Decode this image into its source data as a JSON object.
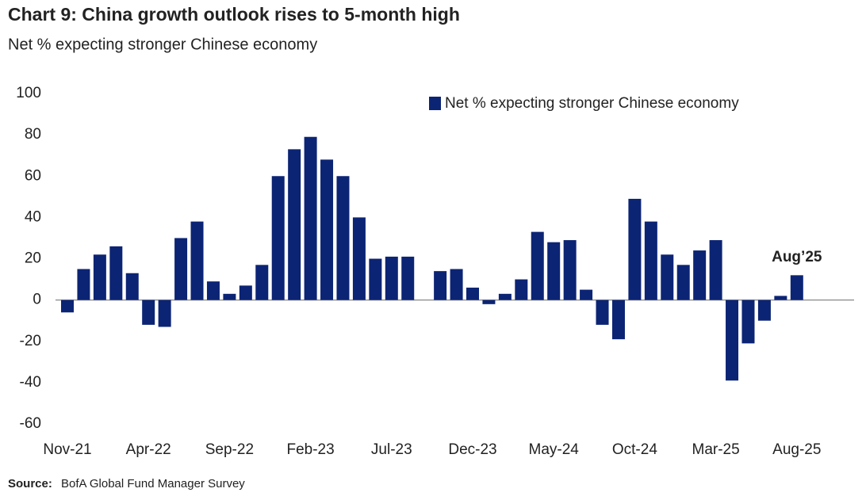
{
  "chart_data": {
    "type": "bar",
    "title": "Chart 9: China growth outlook rises to 5-month high",
    "subtitle": "Net % expecting stronger Chinese economy",
    "categories": [
      "Nov-21",
      null,
      null,
      null,
      null,
      "Apr-22",
      null,
      null,
      null,
      null,
      "Sep-22",
      null,
      null,
      null,
      null,
      "Feb-23",
      null,
      null,
      null,
      null,
      "Jul-23",
      null,
      null,
      null,
      null,
      "Dec-23",
      null,
      null,
      null,
      null,
      "May-24",
      null,
      null,
      null,
      null,
      "Oct-24",
      null,
      null,
      null,
      null,
      "Mar-25",
      null,
      null,
      null,
      null,
      "Aug-25"
    ],
    "series": [
      {
        "name": "Net % expecting stronger Chinese economy",
        "color": "#0c2474",
        "values": [
          -6,
          15,
          22,
          26,
          13,
          -12,
          -13,
          30,
          38,
          9,
          3,
          7,
          17,
          60,
          73,
          79,
          68,
          60,
          40,
          20,
          21,
          21,
          null,
          14,
          15,
          6,
          -2,
          3,
          10,
          33,
          28,
          29,
          5,
          -12,
          -19,
          49,
          38,
          22,
          17,
          24,
          29,
          -39,
          -21,
          -10,
          2,
          12
        ]
      }
    ],
    "ylim": [
      -60,
      100
    ],
    "yticks": [
      -60,
      -40,
      -20,
      0,
      20,
      40,
      60,
      80,
      100
    ],
    "annotation": "Aug’25",
    "annotation_color": "#c8102e",
    "source_label": "Source:",
    "source": "BofA Global Fund Manager Survey",
    "legend": "top-right"
  }
}
